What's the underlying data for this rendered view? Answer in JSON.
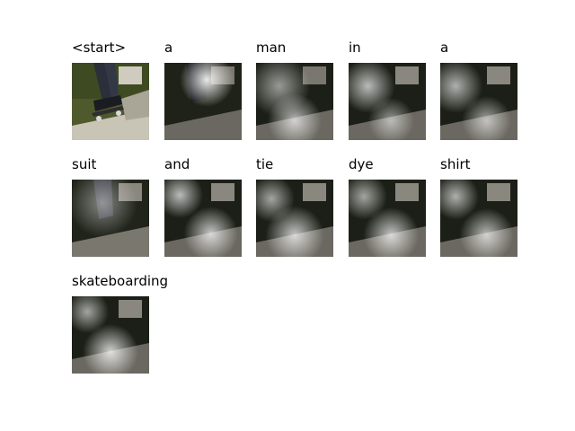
{
  "tokens": [
    {
      "word": "<start>",
      "kind": "source"
    },
    {
      "word": "a",
      "kind": "attention"
    },
    {
      "word": "man",
      "kind": "attention"
    },
    {
      "word": "in",
      "kind": "attention"
    },
    {
      "word": "a",
      "kind": "attention"
    },
    {
      "word": "suit",
      "kind": "attention"
    },
    {
      "word": "and",
      "kind": "attention"
    },
    {
      "word": "tie",
      "kind": "attention"
    },
    {
      "word": "dye",
      "kind": "attention"
    },
    {
      "word": "shirt",
      "kind": "attention"
    },
    {
      "word": "skateboarding",
      "kind": "attention"
    }
  ],
  "colors": {
    "background": "#ffffff",
    "text": "#000000",
    "grass": "#4f5a2c",
    "concrete": "#b8b4a8",
    "jeans": "#2a2f3a"
  }
}
